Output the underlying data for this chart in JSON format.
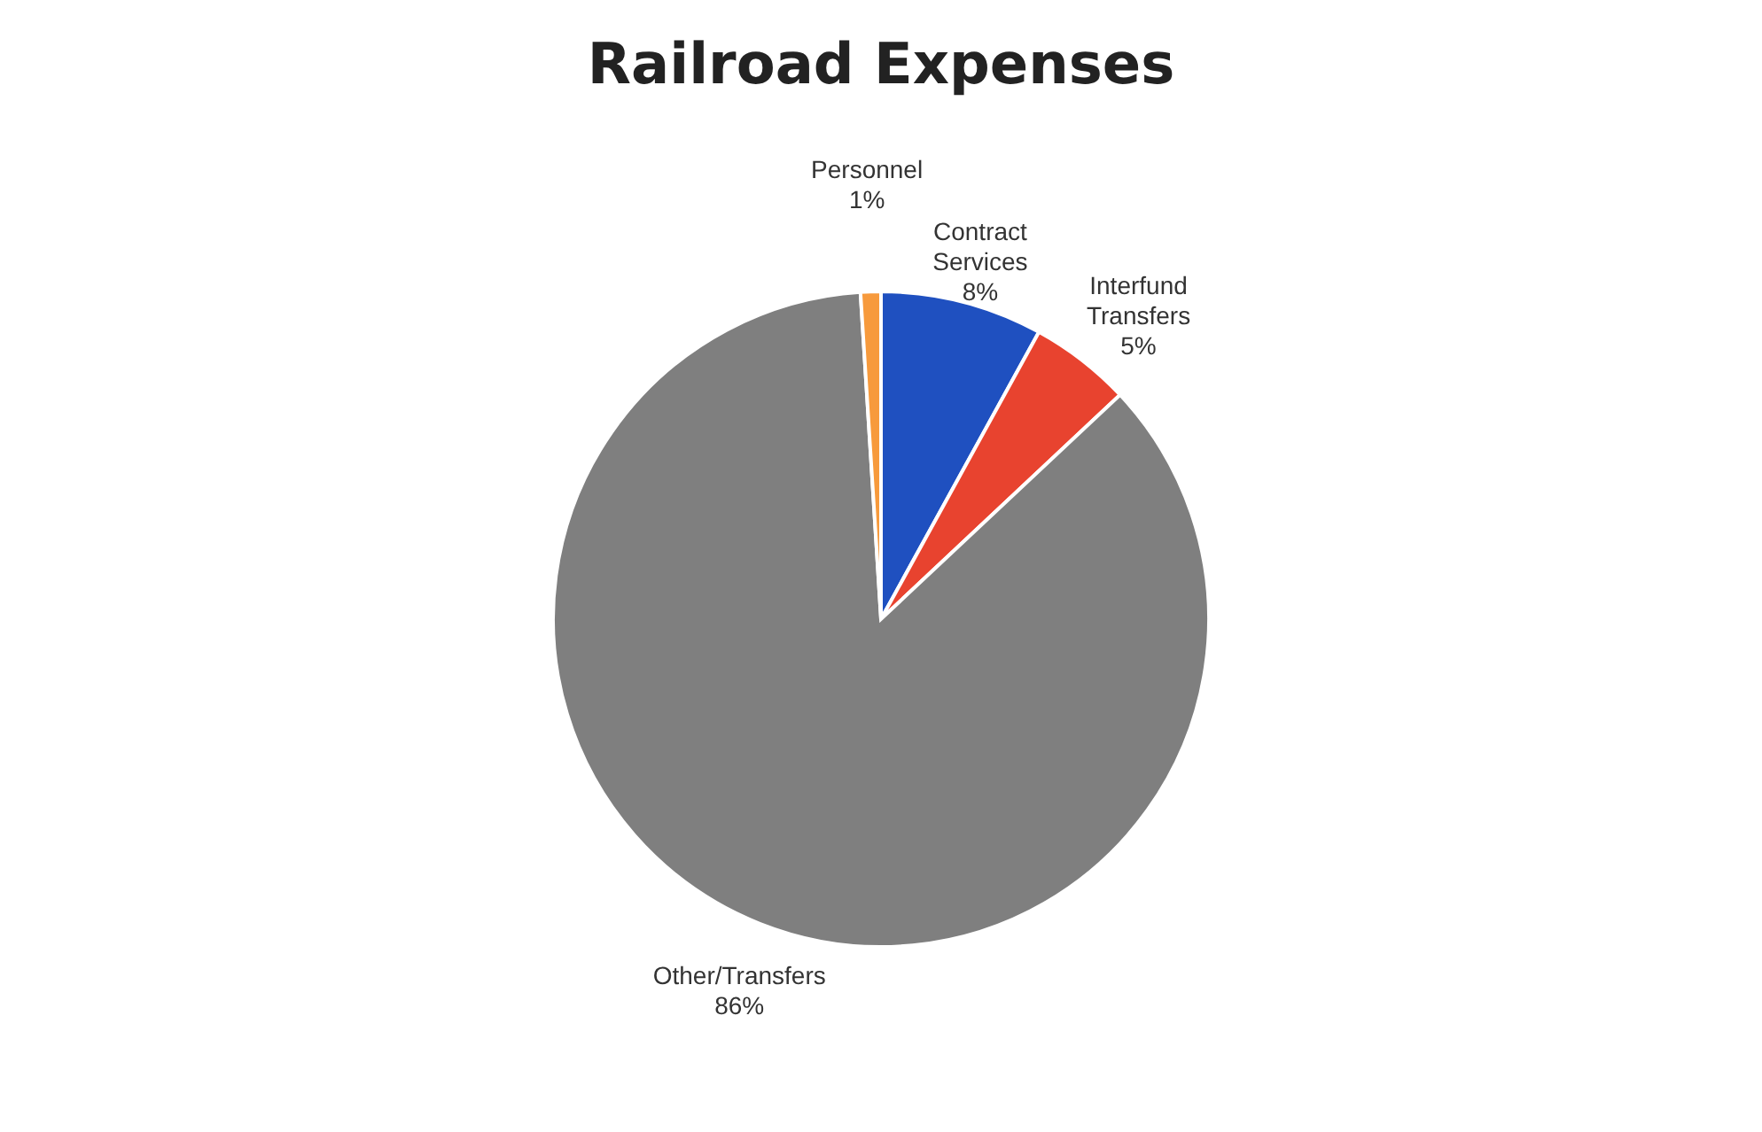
{
  "chart_data": {
    "type": "pie",
    "title": "Railroad Expenses",
    "categories": [
      "Contract Services",
      "Interfund Transfers",
      "Other/Transfers",
      "Personnel"
    ],
    "values": [
      8,
      5,
      86,
      1
    ],
    "colors": [
      "#1f50c0",
      "#e8432f",
      "#7f7f7f",
      "#f79a3c"
    ],
    "value_labels": [
      "8%",
      "5%",
      "86%",
      "1%"
    ]
  }
}
